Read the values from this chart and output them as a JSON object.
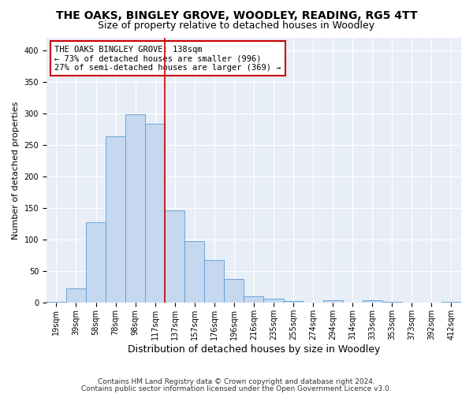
{
  "title": "THE OAKS, BINGLEY GROVE, WOODLEY, READING, RG5 4TT",
  "subtitle": "Size of property relative to detached houses in Woodley",
  "xlabel": "Distribution of detached houses by size in Woodley",
  "ylabel": "Number of detached properties",
  "categories": [
    "19sqm",
    "39sqm",
    "58sqm",
    "78sqm",
    "98sqm",
    "117sqm",
    "137sqm",
    "157sqm",
    "176sqm",
    "196sqm",
    "216sqm",
    "235sqm",
    "255sqm",
    "274sqm",
    "294sqm",
    "314sqm",
    "333sqm",
    "353sqm",
    "373sqm",
    "392sqm",
    "412sqm"
  ],
  "values": [
    2,
    23,
    128,
    263,
    299,
    284,
    146,
    98,
    68,
    38,
    10,
    6,
    3,
    1,
    4,
    1,
    4,
    2,
    1,
    1,
    2
  ],
  "bar_color": "#c5d8f0",
  "bar_edge_color": "#5b9bd5",
  "fig_background_color": "#ffffff",
  "plot_background_color": "#e8eef8",
  "grid_color": "#ffffff",
  "vline_x_index": 5,
  "vline_color": "#cc0000",
  "annotation_text": "THE OAKS BINGLEY GROVE: 138sqm\n← 73% of detached houses are smaller (996)\n27% of semi-detached houses are larger (369) →",
  "annotation_box_color": "#ffffff",
  "annotation_box_edge_color": "#cc0000",
  "ylim": [
    0,
    420
  ],
  "yticks": [
    0,
    50,
    100,
    150,
    200,
    250,
    300,
    350,
    400
  ],
  "footnote1": "Contains HM Land Registry data © Crown copyright and database right 2024.",
  "footnote2": "Contains public sector information licensed under the Open Government Licence v3.0.",
  "title_fontsize": 10,
  "subtitle_fontsize": 9,
  "xlabel_fontsize": 9,
  "ylabel_fontsize": 8,
  "tick_fontsize": 7,
  "annotation_fontsize": 7.5,
  "footnote_fontsize": 6.5
}
